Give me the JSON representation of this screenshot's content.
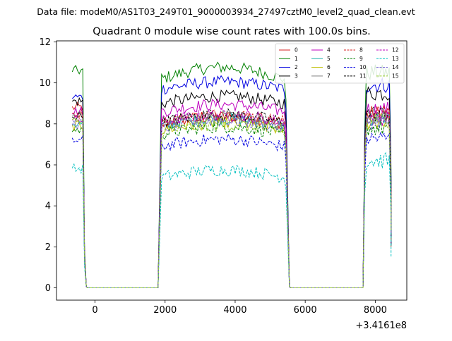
{
  "figure": {
    "suptitle": "Data file: modeM0/AS1T03_249T01_9000003934_27497cztM0_level2_quad_clean.evt"
  },
  "chart_data": {
    "type": "line",
    "title": "Quadrant 0 module wise count rates with 100.0s bins.",
    "xlabel": "",
    "ylabel": "",
    "x_offset_label": "+3.4161e8",
    "xlim": [
      -1100,
      8900
    ],
    "ylim": [
      -0.6,
      12.05
    ],
    "x_ticks": [
      0,
      2000,
      4000,
      6000,
      8000
    ],
    "y_ticks": [
      0,
      2,
      4,
      6,
      8,
      10,
      12
    ],
    "grid": false,
    "legend_placement": "top-right",
    "legend_columns": 4,
    "segments": [
      {
        "x_start": -650,
        "x_end": -350
      },
      {
        "x_start": 1850,
        "x_end": 5450
      },
      {
        "x_start": 7750,
        "x_end": 8450
      }
    ],
    "series": [
      {
        "name": "0",
        "color": "#d62020",
        "dashed": false,
        "levels": [
          8.8,
          8.0,
          8.5
        ]
      },
      {
        "name": "1",
        "color": "#008000",
        "dashed": false,
        "levels": [
          10.6,
          10.2,
          10.5
        ]
      },
      {
        "name": "2",
        "color": "#0000e0",
        "dashed": false,
        "levels": [
          9.3,
          9.7,
          9.9
        ]
      },
      {
        "name": "3",
        "color": "#000000",
        "dashed": false,
        "levels": [
          9.1,
          9.0,
          9.5
        ]
      },
      {
        "name": "4",
        "color": "#bf00bf",
        "dashed": false,
        "levels": [
          8.6,
          8.6,
          8.7
        ]
      },
      {
        "name": "5",
        "color": "#20b2aa",
        "dashed": false,
        "levels": [
          8.0,
          7.9,
          8.2
        ]
      },
      {
        "name": "6",
        "color": "#bfbf00",
        "dashed": false,
        "levels": [
          7.9,
          7.7,
          8.1
        ]
      },
      {
        "name": "7",
        "color": "#808080",
        "dashed": false,
        "levels": [
          8.3,
          8.0,
          8.3
        ]
      },
      {
        "name": "8",
        "color": "#d62020",
        "dashed": true,
        "levels": [
          8.5,
          8.1,
          8.5
        ]
      },
      {
        "name": "9",
        "color": "#008000",
        "dashed": true,
        "levels": [
          7.7,
          7.5,
          7.8
        ]
      },
      {
        "name": "10",
        "color": "#0000e0",
        "dashed": true,
        "levels": [
          7.2,
          6.9,
          7.3
        ]
      },
      {
        "name": "11",
        "color": "#000000",
        "dashed": true,
        "levels": [
          8.4,
          8.1,
          8.5
        ]
      },
      {
        "name": "12",
        "color": "#bf00bf",
        "dashed": true,
        "levels": [
          8.2,
          8.1,
          8.3
        ]
      },
      {
        "name": "13",
        "color": "#00bfbf",
        "dashed": true,
        "levels": [
          5.8,
          5.4,
          6.2
        ]
      },
      {
        "name": "14",
        "color": "#6a5acd",
        "dashed": true,
        "levels": [
          8.0,
          7.8,
          8.1
        ]
      },
      {
        "name": "15",
        "color": "#9acd32",
        "dashed": true,
        "levels": [
          8.1,
          7.6,
          8.2
        ]
      }
    ]
  }
}
